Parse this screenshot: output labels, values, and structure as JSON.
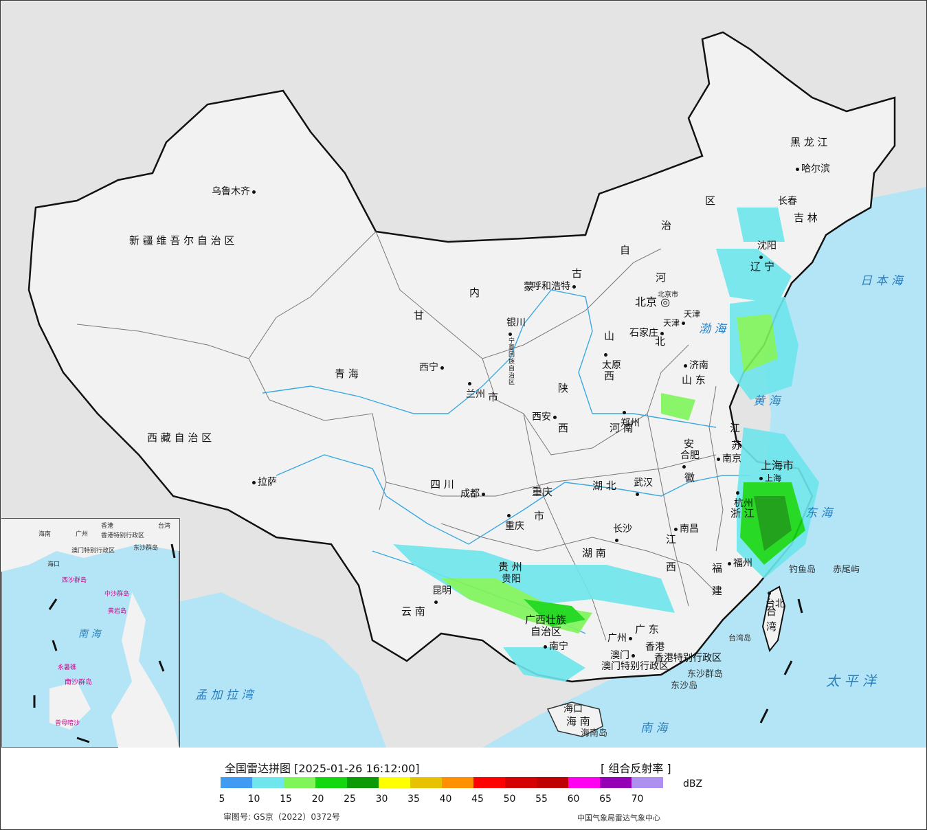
{
  "map": {
    "provinces": [
      {
        "name": "新 疆 维 吾 尔 自 治 区"
      },
      {
        "name": "西 藏 自 治 区"
      },
      {
        "name": "青        海"
      },
      {
        "name": "甘"
      },
      {
        "name": "内"
      },
      {
        "name": "蒙"
      },
      {
        "name": "古"
      },
      {
        "name": "自"
      },
      {
        "name": "治"
      },
      {
        "name": "区"
      },
      {
        "name": "黑  龙  江"
      },
      {
        "name": "吉   林"
      },
      {
        "name": "辽"
      },
      {
        "name": "宁"
      },
      {
        "name": "河"
      },
      {
        "name": "北"
      },
      {
        "name": "山"
      },
      {
        "name": "西"
      },
      {
        "name": "陕"
      },
      {
        "name": "西"
      },
      {
        "name": "四      川"
      },
      {
        "name": "云  南"
      },
      {
        "name": "贵  州"
      },
      {
        "name": "湖   南"
      },
      {
        "name": "湖   北"
      },
      {
        "name": "河   南"
      },
      {
        "name": "山   东"
      },
      {
        "name": "江"
      },
      {
        "name": "苏"
      },
      {
        "name": "安"
      },
      {
        "name": "徽"
      },
      {
        "name": "浙 江"
      },
      {
        "name": "江"
      },
      {
        "name": "西"
      },
      {
        "name": "福"
      },
      {
        "name": "建"
      },
      {
        "name": "广  东"
      },
      {
        "name": "广西壮族"
      },
      {
        "name": "自治区"
      },
      {
        "name": "海   南"
      },
      {
        "name": "台"
      },
      {
        "name": "湾"
      },
      {
        "name": "重庆"
      },
      {
        "name": "市"
      },
      {
        "name": "宁夏回族自治区"
      },
      {
        "name": "天津"
      },
      {
        "name": "市"
      }
    ],
    "cities": [
      {
        "name": "乌鲁木齐"
      },
      {
        "name": "拉萨"
      },
      {
        "name": "西宁"
      },
      {
        "name": "兰州"
      },
      {
        "name": "银川"
      },
      {
        "name": "呼和浩特"
      },
      {
        "name": "北京"
      },
      {
        "name": "天津"
      },
      {
        "name": "石家庄"
      },
      {
        "name": "太原"
      },
      {
        "name": "济南"
      },
      {
        "name": "郑州"
      },
      {
        "name": "西安"
      },
      {
        "name": "成都"
      },
      {
        "name": "重庆"
      },
      {
        "name": "武汉"
      },
      {
        "name": "合肥"
      },
      {
        "name": "南京"
      },
      {
        "name": "上海"
      },
      {
        "name": "杭州"
      },
      {
        "name": "南昌"
      },
      {
        "name": "长沙"
      },
      {
        "name": "贵阳"
      },
      {
        "name": "昆明"
      },
      {
        "name": "南宁"
      },
      {
        "name": "广州"
      },
      {
        "name": "澳门"
      },
      {
        "name": "香港"
      },
      {
        "name": "福州"
      },
      {
        "name": "台北"
      },
      {
        "name": "海口"
      },
      {
        "name": "沈阳"
      },
      {
        "name": "长春"
      },
      {
        "name": "哈尔滨"
      }
    ],
    "municipalities": {
      "shanghai": "上海市",
      "beijing_small": "北京市"
    },
    "seas": [
      {
        "name": "日 本 海"
      },
      {
        "name": "渤 海"
      },
      {
        "name": "黄 海"
      },
      {
        "name": "东 海"
      },
      {
        "name": "太   平   洋"
      },
      {
        "name": "南     海"
      },
      {
        "name": "孟 加 拉 湾"
      }
    ],
    "islands": [
      {
        "name": "钓鱼岛"
      },
      {
        "name": "赤尾屿"
      },
      {
        "name": "台湾岛"
      },
      {
        "name": "东沙群岛"
      },
      {
        "name": "东沙岛"
      },
      {
        "name": "海南岛"
      }
    ],
    "sar": {
      "hk": "香港特别行政区",
      "macau": "澳门特别行政区"
    },
    "inset": {
      "labels": [
        "海南",
        "广州",
        "香港",
        "台湾",
        "澳门特别行政区",
        "香港特别行政区",
        "东沙群岛",
        "海口",
        "西沙群岛",
        "中沙群岛",
        "黄岩岛",
        "南 海",
        "永暑礁",
        "南沙群岛",
        "曾母暗沙"
      ]
    },
    "colors": {
      "land": "#f2f2f2",
      "sea": "#b3e5f7",
      "outside": "#e4e4e4",
      "border": "#111111",
      "river": "#3aa9e0"
    }
  },
  "legend": {
    "title": "全国雷达拼图 [2025-01-26 16:12:00]",
    "product": "[ 组合反射率 ]",
    "unit": "dBZ",
    "colors": [
      "#3f9cf0",
      "#6ee6ec",
      "#7ff55a",
      "#13d80f",
      "#0c9a06",
      "#ffff00",
      "#e6c200",
      "#ff9100",
      "#ff0000",
      "#d60000",
      "#c00000",
      "#ff00f0",
      "#9600b4",
      "#ae90f0"
    ],
    "ticks": [
      "5",
      "10",
      "15",
      "20",
      "25",
      "30",
      "35",
      "40",
      "45",
      "50",
      "55",
      "60",
      "65",
      "70"
    ],
    "approval": "审图号: GS京（2022）0372号",
    "org": "中国气象局雷达气象中心"
  }
}
